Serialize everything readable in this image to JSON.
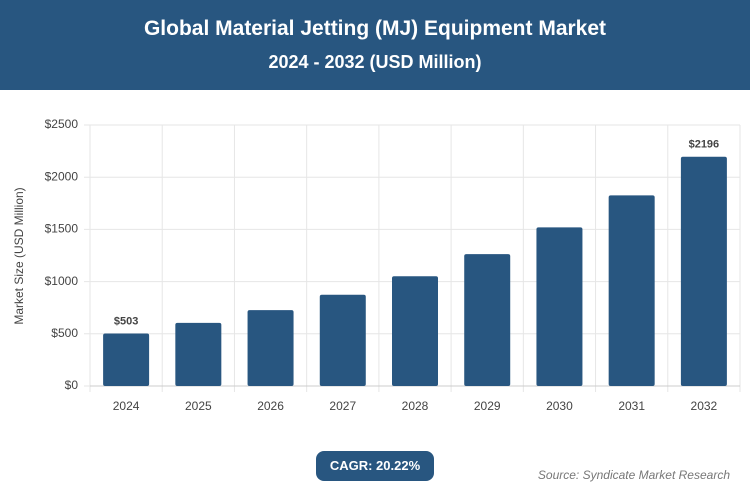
{
  "title": "Global Material Jetting (MJ) Equipment Market",
  "subtitle": "2024 - 2032 (USD Million)",
  "chart_data": {
    "type": "bar",
    "y_label": "Market Size (USD Million)",
    "categories": [
      "2024",
      "2025",
      "2026",
      "2027",
      "2028",
      "2029",
      "2030",
      "2031",
      "2032"
    ],
    "values": [
      503,
      605,
      727,
      874,
      1051,
      1263,
      1519,
      1826,
      2196
    ],
    "value_labels": [
      "$503",
      null,
      null,
      null,
      null,
      null,
      null,
      null,
      "$2196"
    ],
    "color": "#285680",
    "ylim": [
      0,
      2500
    ],
    "yticks": [
      {
        "value": 0,
        "label": "$0"
      },
      {
        "value": 500,
        "label": "$500"
      },
      {
        "value": 1000,
        "label": "$1000"
      },
      {
        "value": 1500,
        "label": "$1500"
      },
      {
        "value": 2000,
        "label": "$2000"
      },
      {
        "value": 2500,
        "label": "$2500"
      }
    ],
    "grid": true
  },
  "cagr": "CAGR: 20.22%",
  "source": "Source: Syndicate Market Research"
}
